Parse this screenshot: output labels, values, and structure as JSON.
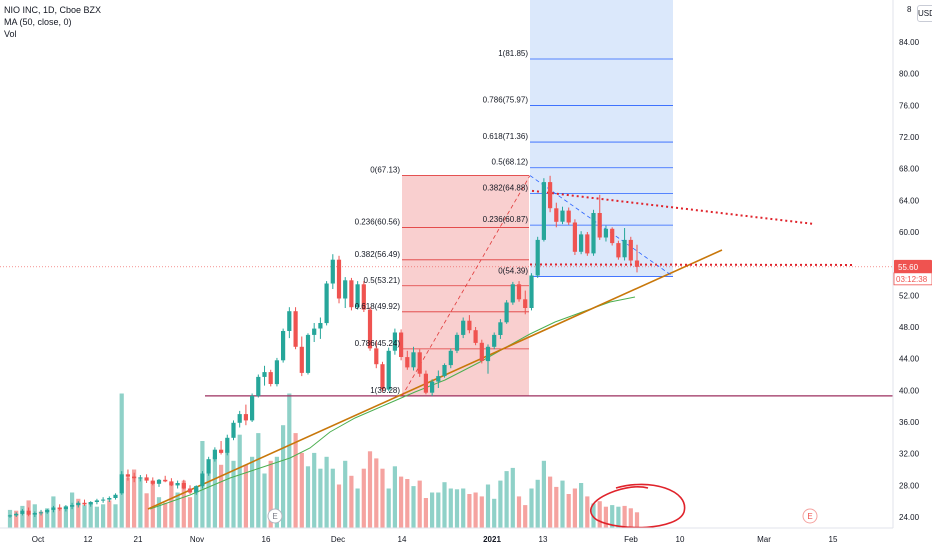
{
  "legend": {
    "symbol": "NIO INC, 1D, Cboe BZX",
    "ma": "MA (50, close, 0)",
    "vol": "Vol"
  },
  "currency": "USD",
  "price_scale_top": "8",
  "colors": {
    "up": "#26a69a",
    "down": "#ef5350",
    "up_vol": "#8fd1c8",
    "down_vol": "#f5a3a0",
    "ma": "#4caf50",
    "trend": "#c8770a",
    "support": "#9c2f5f",
    "fib_up_zone": "#dbe8fb",
    "fib_up_line": "#2962ff",
    "fib_down_zone": "#f9cfcf",
    "fib_down_line": "#e03a3a",
    "dotted": "#e0232b",
    "circle": "#e0232b",
    "current_line": "#ef5350"
  },
  "chart_data": {
    "type": "candlestick",
    "title": "NIO INC, 1D, Cboe BZX",
    "y_ticks": [
      24,
      28,
      32,
      36,
      40,
      44,
      48,
      52,
      56,
      60,
      64,
      68,
      72,
      76,
      80,
      84
    ],
    "ylim": [
      23,
      88.5
    ],
    "x_ticks": [
      "Oct",
      "12",
      "21",
      "Nov",
      "16",
      "Dec",
      "14",
      "2021",
      "13",
      "Feb",
      "10",
      "Mar",
      "15"
    ],
    "current_price": "55.60",
    "countdown": "03:12:38",
    "earnings_markers": [
      "E",
      "E"
    ],
    "candles": [
      [
        24.1,
        24.3,
        23.9,
        24.2
      ],
      [
        24.2,
        24.6,
        24.0,
        24.4
      ],
      [
        24.4,
        25.0,
        24.2,
        24.8
      ],
      [
        24.8,
        25.2,
        24.1,
        24.3
      ],
      [
        24.3,
        24.7,
        24.0,
        24.5
      ],
      [
        24.5,
        24.9,
        24.2,
        24.6
      ],
      [
        24.6,
        25.0,
        24.4,
        24.9
      ],
      [
        24.9,
        25.4,
        24.6,
        25.2
      ],
      [
        25.2,
        25.6,
        24.8,
        25.0
      ],
      [
        25.0,
        25.5,
        24.7,
        25.3
      ],
      [
        25.3,
        25.8,
        25.0,
        25.5
      ],
      [
        25.5,
        26.0,
        25.2,
        25.8
      ],
      [
        25.8,
        26.2,
        25.4,
        25.6
      ],
      [
        25.6,
        26.0,
        25.3,
        25.9
      ],
      [
        25.9,
        26.3,
        25.6,
        26.1
      ],
      [
        26.1,
        26.5,
        25.8,
        26.2
      ],
      [
        26.2,
        26.6,
        25.9,
        26.4
      ],
      [
        26.4,
        27.0,
        26.2,
        26.8
      ],
      [
        27.0,
        29.8,
        26.8,
        29.4
      ],
      [
        29.4,
        30.0,
        28.6,
        29.1
      ],
      [
        29.1,
        29.6,
        28.4,
        28.9
      ],
      [
        28.9,
        29.3,
        28.5,
        29.0
      ],
      [
        29.0,
        29.4,
        28.3,
        28.6
      ],
      [
        28.6,
        29.0,
        28.0,
        28.2
      ],
      [
        28.2,
        28.8,
        27.8,
        28.7
      ],
      [
        28.7,
        29.2,
        28.4,
        28.5
      ],
      [
        28.5,
        28.9,
        27.9,
        28.0
      ],
      [
        28.0,
        28.6,
        27.6,
        28.3
      ],
      [
        28.3,
        28.7,
        27.5,
        27.6
      ],
      [
        27.6,
        28.0,
        26.9,
        27.1
      ],
      [
        27.1,
        28.0,
        26.8,
        27.9
      ],
      [
        27.9,
        29.8,
        27.6,
        29.5
      ],
      [
        29.5,
        31.6,
        29.2,
        31.3
      ],
      [
        31.3,
        32.8,
        31.0,
        32.5
      ],
      [
        32.5,
        33.6,
        31.9,
        32.1
      ],
      [
        32.1,
        34.4,
        31.8,
        34.0
      ],
      [
        34.0,
        36.2,
        33.7,
        35.9
      ],
      [
        35.9,
        37.4,
        35.3,
        37.0
      ],
      [
        37.0,
        38.2,
        35.6,
        36.2
      ],
      [
        36.2,
        39.6,
        36.0,
        39.3
      ],
      [
        39.3,
        42.0,
        39.1,
        41.7
      ],
      [
        41.7,
        43.1,
        40.6,
        42.3
      ],
      [
        42.3,
        42.6,
        40.5,
        40.8
      ],
      [
        40.8,
        44.1,
        40.5,
        43.8
      ],
      [
        43.8,
        47.8,
        43.5,
        47.5
      ],
      [
        47.5,
        50.5,
        46.6,
        50.0
      ],
      [
        50.0,
        50.5,
        45.2,
        45.5
      ],
      [
        45.5,
        46.8,
        41.8,
        42.2
      ],
      [
        42.2,
        47.2,
        42.0,
        47.0
      ],
      [
        47.0,
        48.5,
        46.1,
        47.8
      ],
      [
        47.8,
        49.2,
        46.5,
        48.5
      ],
      [
        48.5,
        53.8,
        48.2,
        53.5
      ],
      [
        53.5,
        57.2,
        52.8,
        56.5
      ],
      [
        56.5,
        57.0,
        51.0,
        51.6
      ],
      [
        51.6,
        54.3,
        50.4,
        53.9
      ],
      [
        53.9,
        54.2,
        50.1,
        50.5
      ],
      [
        50.5,
        53.8,
        50.2,
        53.4
      ],
      [
        53.4,
        53.8,
        49.9,
        50.2
      ],
      [
        50.2,
        50.5,
        45.0,
        45.3
      ],
      [
        45.3,
        46.3,
        42.8,
        43.3
      ],
      [
        43.3,
        43.6,
        39.8,
        40.1
      ],
      [
        40.1,
        45.4,
        39.9,
        45.0
      ],
      [
        45.0,
        47.8,
        44.5,
        47.3
      ],
      [
        47.3,
        47.7,
        43.8,
        44.2
      ],
      [
        44.2,
        45.0,
        42.6,
        42.9
      ],
      [
        42.9,
        45.5,
        42.5,
        44.8
      ],
      [
        44.8,
        45.2,
        41.7,
        42.1
      ],
      [
        42.1,
        42.5,
        39.5,
        39.7
      ],
      [
        39.7,
        41.4,
        39.3,
        41.1
      ],
      [
        41.1,
        42.5,
        40.3,
        41.8
      ],
      [
        41.8,
        43.4,
        41.6,
        43.2
      ],
      [
        43.2,
        45.3,
        42.8,
        45.0
      ],
      [
        45.0,
        47.3,
        44.7,
        47.0
      ],
      [
        47.0,
        49.2,
        46.6,
        48.8
      ],
      [
        48.8,
        49.5,
        47.2,
        47.6
      ],
      [
        47.6,
        48.0,
        45.7,
        46.0
      ],
      [
        46.0,
        46.4,
        43.4,
        43.7
      ],
      [
        43.7,
        45.8,
        42.1,
        45.5
      ],
      [
        45.5,
        47.3,
        45.2,
        47.0
      ],
      [
        47.0,
        49.0,
        46.5,
        48.6
      ],
      [
        48.6,
        51.4,
        48.4,
        51.1
      ],
      [
        51.1,
        53.7,
        50.8,
        53.4
      ],
      [
        53.4,
        53.8,
        51.2,
        51.5
      ],
      [
        51.5,
        52.6,
        49.6,
        50.4
      ],
      [
        50.4,
        54.8,
        50.1,
        54.5
      ],
      [
        54.5,
        59.4,
        54.2,
        59.0
      ],
      [
        59.0,
        66.8,
        58.8,
        66.3
      ],
      [
        66.3,
        67.1,
        62.5,
        63.0
      ],
      [
        63.0,
        63.7,
        60.6,
        61.3
      ],
      [
        61.3,
        63.2,
        61.0,
        62.7
      ],
      [
        62.7,
        63.1,
        60.9,
        61.2
      ],
      [
        61.2,
        61.6,
        57.1,
        57.5
      ],
      [
        57.5,
        60.1,
        57.2,
        59.7
      ],
      [
        59.7,
        60.0,
        57.0,
        57.3
      ],
      [
        57.3,
        62.8,
        57.0,
        62.4
      ],
      [
        62.4,
        64.7,
        59.0,
        59.3
      ],
      [
        59.3,
        60.8,
        58.8,
        60.4
      ],
      [
        60.4,
        60.6,
        58.3,
        58.6
      ],
      [
        58.6,
        58.9,
        56.5,
        56.8
      ],
      [
        56.8,
        60.5,
        56.4,
        59.0
      ],
      [
        59.0,
        59.4,
        55.9,
        56.4
      ],
      [
        56.4,
        58.4,
        54.9,
        55.6
      ]
    ],
    "volume": [
      [
        24.9,
        1
      ],
      [
        24.8,
        0
      ],
      [
        25.4,
        1
      ],
      [
        26.1,
        0
      ],
      [
        25.6,
        1
      ],
      [
        24.7,
        0
      ],
      [
        25.1,
        1
      ],
      [
        26.6,
        1
      ],
      [
        25.2,
        0
      ],
      [
        25.4,
        1
      ],
      [
        27.1,
        1
      ],
      [
        26.3,
        0
      ],
      [
        25.5,
        1
      ],
      [
        25.8,
        1
      ],
      [
        25.3,
        1
      ],
      [
        25.6,
        1
      ],
      [
        26.1,
        0
      ],
      [
        25.6,
        1
      ],
      [
        39.6,
        1
      ],
      [
        29.0,
        0
      ],
      [
        30.0,
        0
      ],
      [
        29.0,
        1
      ],
      [
        27.0,
        0
      ],
      [
        28.5,
        0
      ],
      [
        26.5,
        1
      ],
      [
        25.8,
        0
      ],
      [
        28.3,
        0
      ],
      [
        27.1,
        1
      ],
      [
        28.6,
        0
      ],
      [
        26.5,
        0
      ],
      [
        27.6,
        1
      ],
      [
        33.6,
        1
      ],
      [
        29.5,
        1
      ],
      [
        31.6,
        1
      ],
      [
        30.6,
        0
      ],
      [
        32.5,
        1
      ],
      [
        31.1,
        1
      ],
      [
        34.4,
        1
      ],
      [
        30.6,
        0
      ],
      [
        31.6,
        1
      ],
      [
        34.6,
        1
      ],
      [
        29.5,
        1
      ],
      [
        31.1,
        0
      ],
      [
        31.6,
        1
      ],
      [
        35.6,
        1
      ],
      [
        39.6,
        1
      ],
      [
        34.6,
        0
      ],
      [
        32.1,
        0
      ],
      [
        30.4,
        1
      ],
      [
        32.1,
        1
      ],
      [
        30.1,
        1
      ],
      [
        31.6,
        1
      ],
      [
        30.1,
        1
      ],
      [
        28.1,
        0
      ],
      [
        31.1,
        1
      ],
      [
        29.2,
        0
      ],
      [
        27.6,
        1
      ],
      [
        30.1,
        0
      ],
      [
        32.3,
        0
      ],
      [
        31.4,
        0
      ],
      [
        30.1,
        0
      ],
      [
        27.6,
        1
      ],
      [
        30.4,
        1
      ],
      [
        29.1,
        0
      ],
      [
        28.8,
        0
      ],
      [
        27.9,
        1
      ],
      [
        28.6,
        0
      ],
      [
        26.4,
        0
      ],
      [
        27.1,
        1
      ],
      [
        27.1,
        1
      ],
      [
        28.4,
        1
      ],
      [
        27.6,
        1
      ],
      [
        27.5,
        1
      ],
      [
        27.6,
        1
      ],
      [
        26.9,
        0
      ],
      [
        27.1,
        0
      ],
      [
        26.6,
        0
      ],
      [
        28.1,
        1
      ],
      [
        26.3,
        1
      ],
      [
        28.6,
        1
      ],
      [
        29.8,
        1
      ],
      [
        30.2,
        1
      ],
      [
        26.6,
        0
      ],
      [
        25.5,
        0
      ],
      [
        27.6,
        1
      ],
      [
        28.7,
        1
      ],
      [
        31.1,
        1
      ],
      [
        29.1,
        0
      ],
      [
        27.8,
        0
      ],
      [
        28.6,
        1
      ],
      [
        26.9,
        0
      ],
      [
        27.6,
        0
      ],
      [
        28.3,
        1
      ],
      [
        26.6,
        0
      ],
      [
        25.7,
        1
      ],
      [
        26.0,
        0
      ],
      [
        25.3,
        0
      ],
      [
        25.5,
        1
      ],
      [
        25.3,
        1
      ],
      [
        25.4,
        0
      ],
      [
        25.1,
        0
      ],
      [
        24.6,
        0
      ]
    ],
    "moving_average_50": [
      [
        150,
        509
      ],
      [
        190,
        495
      ],
      [
        230,
        478
      ],
      [
        260,
        468
      ],
      [
        290,
        458
      ],
      [
        310,
        448
      ],
      [
        330,
        432
      ],
      [
        355,
        418
      ],
      [
        385,
        405
      ],
      [
        415,
        392
      ],
      [
        445,
        380
      ],
      [
        480,
        362
      ],
      [
        510,
        345
      ],
      [
        530,
        334
      ],
      [
        555,
        322
      ],
      [
        585,
        311
      ],
      [
        610,
        302
      ],
      [
        635,
        297
      ]
    ],
    "fib_upper": {
      "levels": [
        {
          "label": "1(81.85)",
          "value": 81.85
        },
        {
          "label": "0.786(75.97)",
          "value": 75.97
        },
        {
          "label": "0.618(71.36)",
          "value": 71.36
        },
        {
          "label": "0.5(68.12)",
          "value": 68.12
        },
        {
          "label": "0.382(64.88)",
          "value": 64.88
        },
        {
          "label": "0.236(60.87)",
          "value": 60.87
        },
        {
          "label": "0(54.39)",
          "value": 54.39
        }
      ]
    },
    "fib_lower": {
      "levels": [
        {
          "label": "0(67.13)",
          "value": 67.13
        },
        {
          "label": "0.236(60.56)",
          "value": 60.56
        },
        {
          "label": "0.382(56.49)",
          "value": 56.49
        },
        {
          "label": "0.5(53.21)",
          "value": 53.21
        },
        {
          "label": "0.618(49.92)",
          "value": 49.92
        },
        {
          "label": "0.786(45.24)",
          "value": 45.24
        },
        {
          "label": "1(39.28)",
          "value": 39.28
        }
      ]
    },
    "support_level": 39.3,
    "dotted_resistance_start": 65.2,
    "dotted_resistance_end": 61.0,
    "dotted_support": 55.9
  }
}
